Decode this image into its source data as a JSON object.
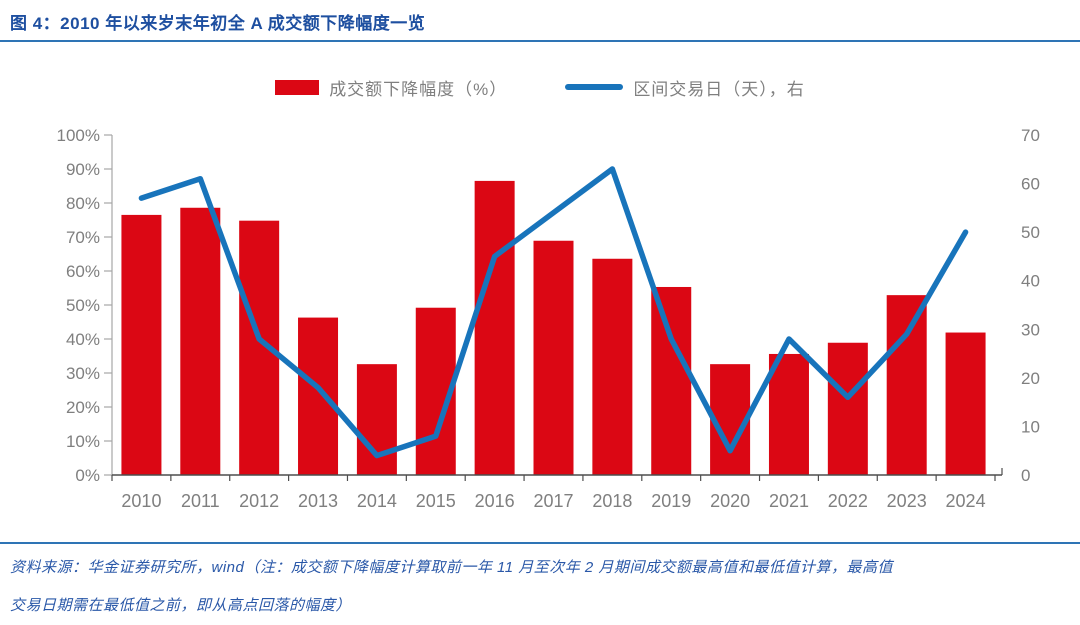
{
  "header": {
    "title": "图 4：2010 年以来岁末年初全 A 成交额下降幅度一览"
  },
  "legend": [
    {
      "label": "成交额下降幅度（%）",
      "swatch": "bar-swatch",
      "color": "#db0714"
    },
    {
      "label": "区间交易日（天），右",
      "swatch": "line-swatch",
      "color": "#1874bb"
    }
  ],
  "footer": {
    "lines": [
      "资料来源：华金证券研究所，wind（注：成交额下降幅度计算取前一年 11 月至次年 2 月期间成交额最高值和最低值计算，最高值",
      "交易日期需在最低值之前，即从高点回落的幅度）"
    ]
  },
  "colors": {
    "bar": "#db0714",
    "line": "#1874bb",
    "title_blue": "#1e4fa0",
    "rule_blue": "#2e74b5",
    "footer_blue": "#2a58a8",
    "axis_label_gray": "#7f7f7f",
    "left_axis_line": "#a6a6a6",
    "bottom_axis_line": "#4d4d4d"
  },
  "chart_data": {
    "type": "bar",
    "subtype": "bar+line combo, dual axis",
    "title": "2010 年以来岁末年初全 A 成交额下降幅度一览",
    "categories": [
      "2010",
      "2011",
      "2012",
      "2013",
      "2014",
      "2015",
      "2016",
      "2017",
      "2018",
      "2019",
      "2020",
      "2021",
      "2022",
      "2023",
      "2024"
    ],
    "series": [
      {
        "name": "成交额下降幅度（%）",
        "type": "bar",
        "axis": "left",
        "color": "#db0714",
        "values": [
          76.5,
          78.6,
          74.8,
          46.3,
          32.6,
          49.2,
          86.5,
          68.9,
          63.6,
          55.3,
          32.6,
          35.6,
          38.9,
          52.9,
          41.9
        ]
      },
      {
        "name": "区间交易日（天），右",
        "type": "line",
        "axis": "right",
        "color": "#1874bb",
        "values": [
          57,
          61,
          28,
          18,
          4,
          8,
          45,
          54,
          63,
          28,
          5,
          28,
          16,
          29,
          50
        ]
      }
    ],
    "left_axis": {
      "min": 0,
      "max": 100,
      "step": 10,
      "tick_suffix": "%"
    },
    "right_axis": {
      "min": 0,
      "max": 70,
      "step": 10,
      "tick_suffix": ""
    },
    "grid": false,
    "legend_position": "top"
  }
}
